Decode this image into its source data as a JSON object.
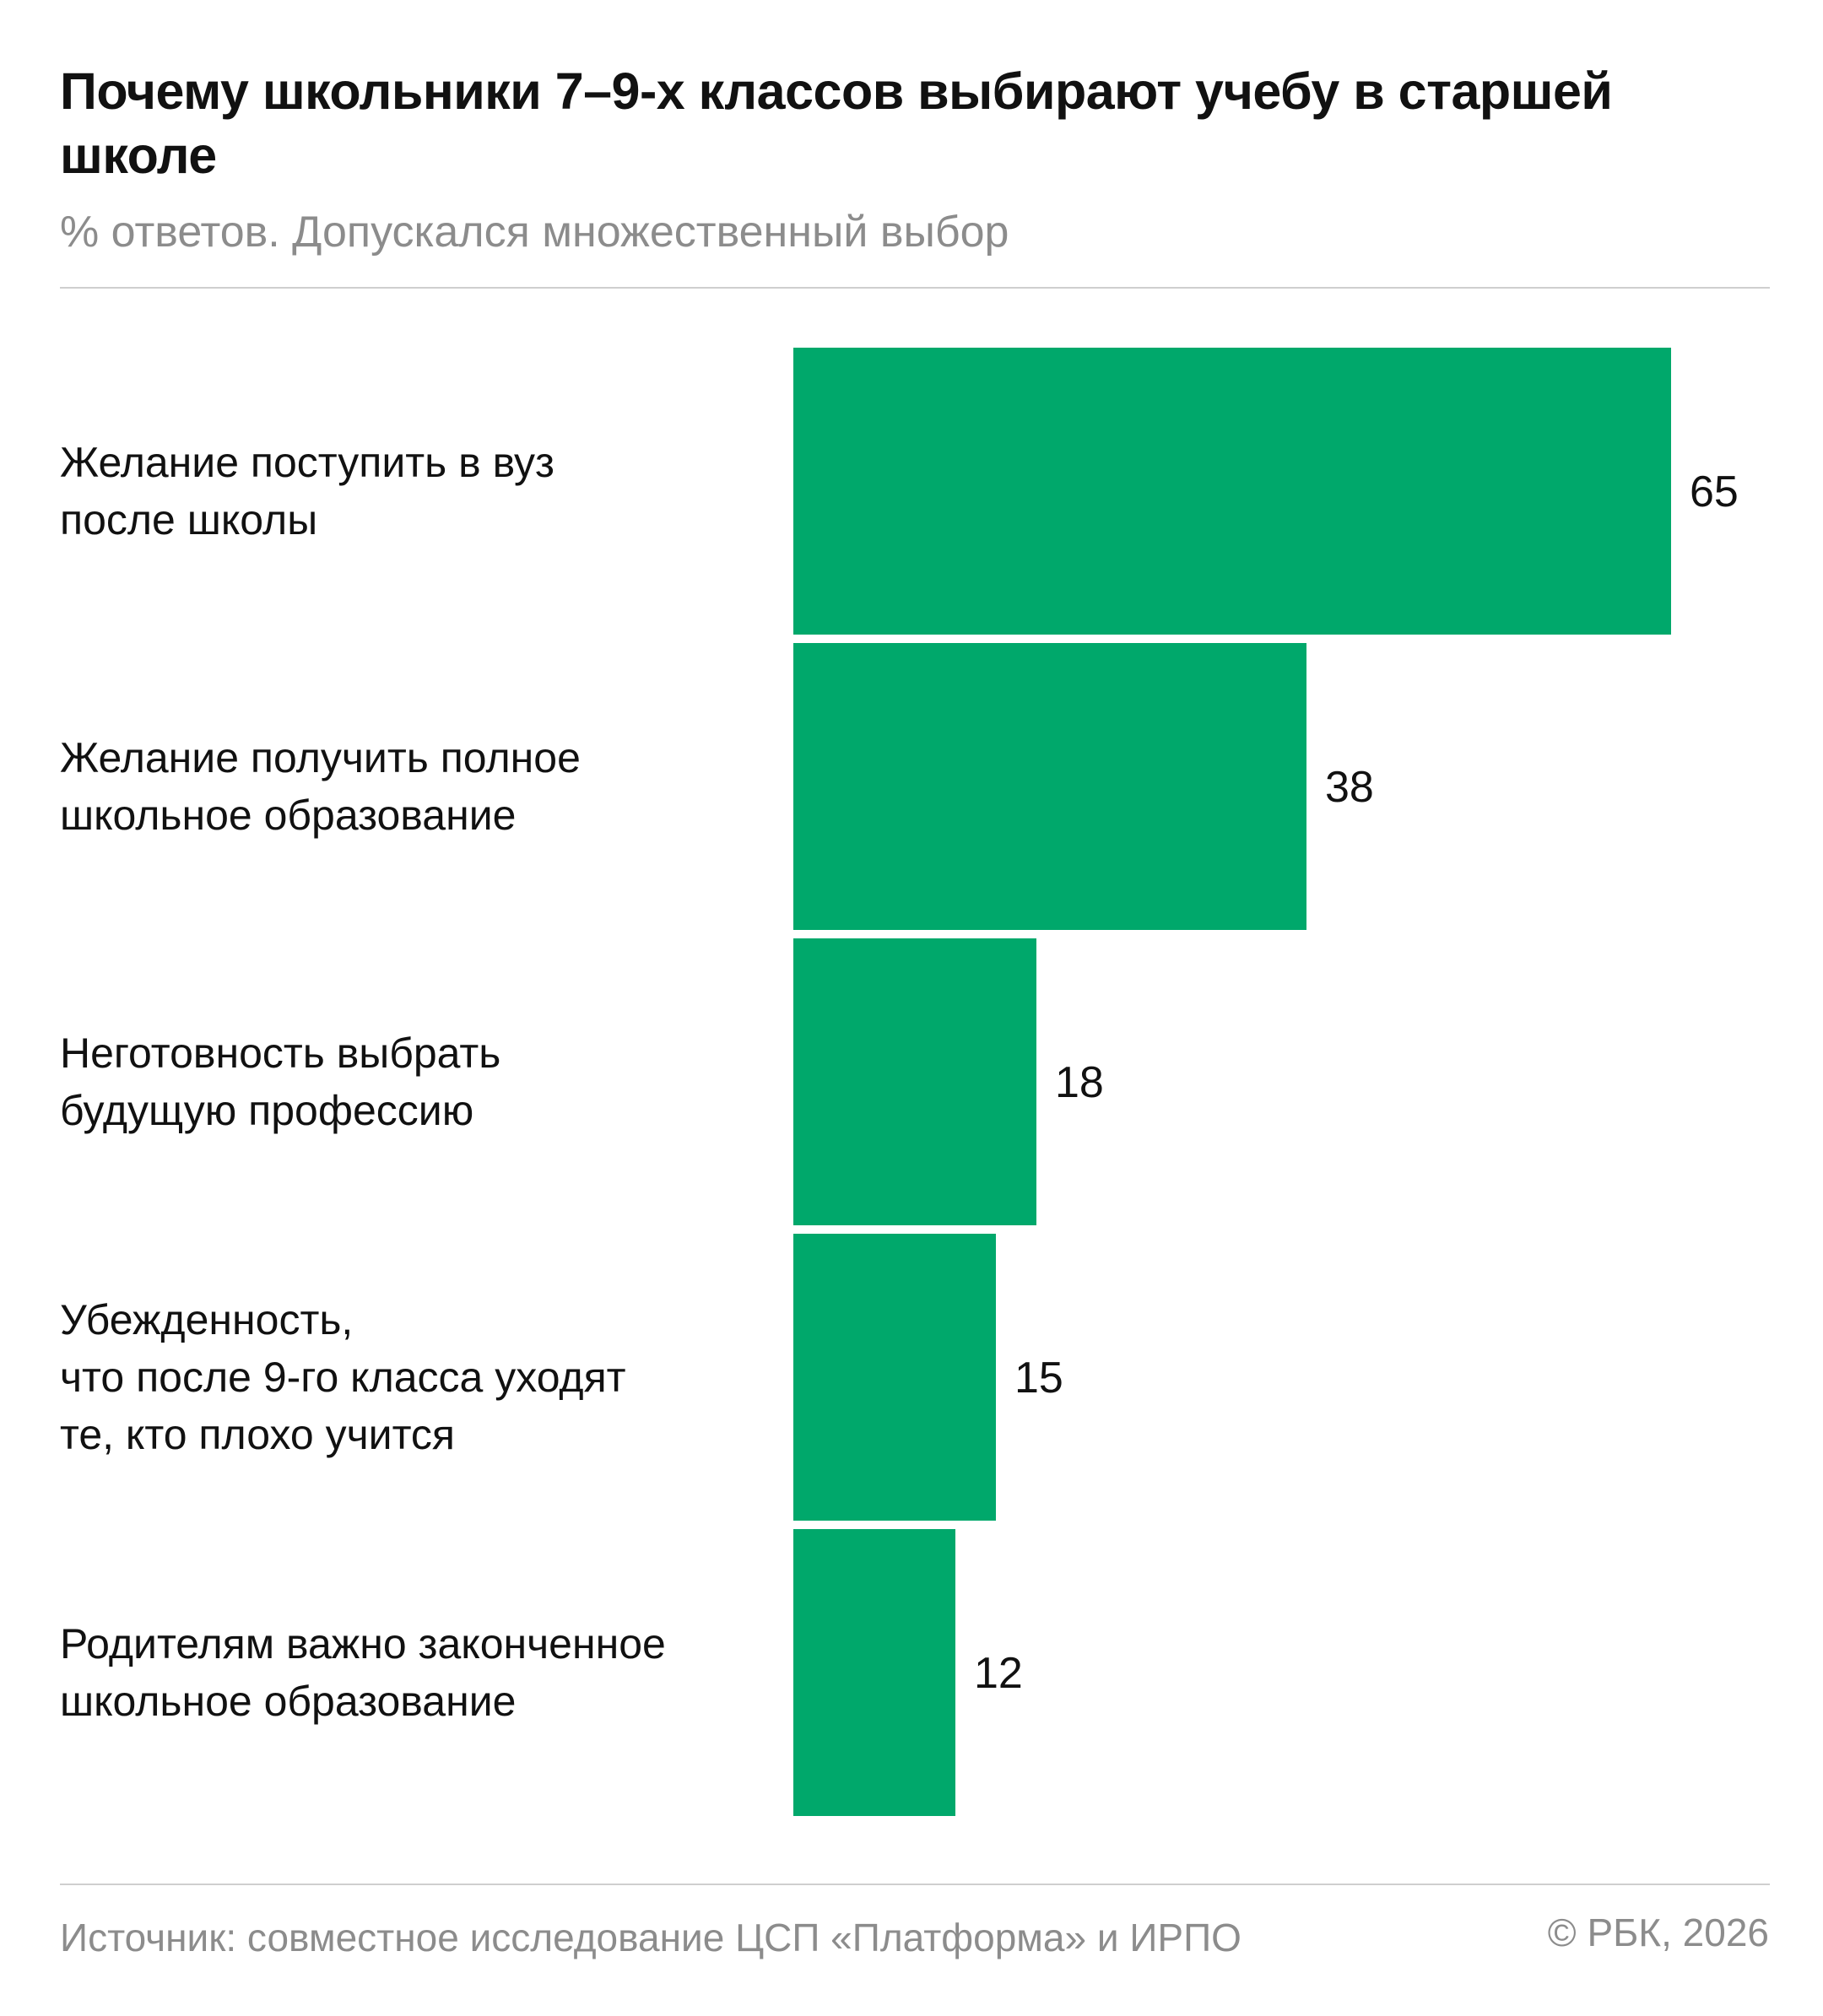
{
  "header": {
    "title": "Почему школьники 7–9-х классов выбирают учебу в старшей школе",
    "subtitle": "% ответов. Допускался множественный выбор"
  },
  "footer": {
    "source": "Источник: совместное исследование ЦСП «Платформа» и ИРПО",
    "copyright": "© РБК, 2026"
  },
  "colors": {
    "bar": "#00a86b",
    "text": "#111111",
    "muted": "#8c8c8c"
  },
  "chart_data": {
    "type": "bar",
    "orientation": "horizontal",
    "categories": [
      "Желание поступить в вуз\nпосле школы",
      "Желание получить полное\nшкольное образование",
      "Неготовность выбрать\nбудущую профессию",
      "Убежденность,\nчто после 9-го класса уходят\nте, кто плохо учится",
      "Родителям важно законченное\nшкольное образование"
    ],
    "values": [
      65,
      38,
      18,
      15,
      12
    ],
    "data_labels": [
      "65",
      "38",
      "18",
      "15",
      "12"
    ],
    "xlim": [
      0,
      65
    ],
    "grid": false,
    "legend": "none"
  }
}
